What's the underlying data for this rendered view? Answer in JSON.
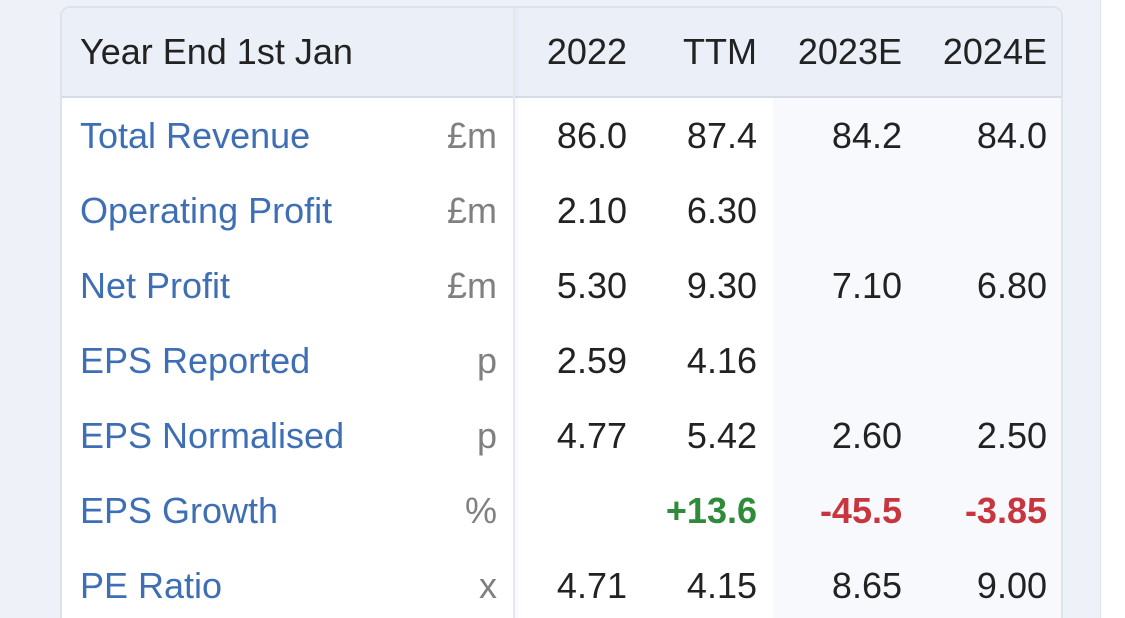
{
  "table": {
    "header": {
      "label": "Year End 1st Jan",
      "columns": [
        "2022",
        "TTM",
        "2023E",
        "2024E"
      ]
    },
    "rows": [
      {
        "label": "Total Revenue",
        "unit": "£m",
        "values": [
          "86.0",
          "87.4",
          "84.2",
          "84.0"
        ]
      },
      {
        "label": "Operating Profit",
        "unit": "£m",
        "values": [
          "2.10",
          "6.30",
          "",
          ""
        ]
      },
      {
        "label": "Net Profit",
        "unit": "£m",
        "values": [
          "5.30",
          "9.30",
          "7.10",
          "6.80"
        ]
      },
      {
        "label": "EPS Reported",
        "unit": "p",
        "values": [
          "2.59",
          "4.16",
          "",
          ""
        ]
      },
      {
        "label": "EPS Normalised",
        "unit": "p",
        "values": [
          "4.77",
          "5.42",
          "2.60",
          "2.50"
        ]
      },
      {
        "label": "EPS Growth",
        "unit": "%",
        "values": [
          "",
          "+13.6",
          "-45.5",
          "-3.85"
        ]
      },
      {
        "label": "PE Ratio",
        "unit": "x",
        "values": [
          "4.71",
          "4.15",
          "8.65",
          "9.00"
        ]
      }
    ]
  },
  "colors": {
    "label_blue": "#3e6fb4",
    "positive_green": "#2e8b3a",
    "negative_red": "#c8353e"
  }
}
